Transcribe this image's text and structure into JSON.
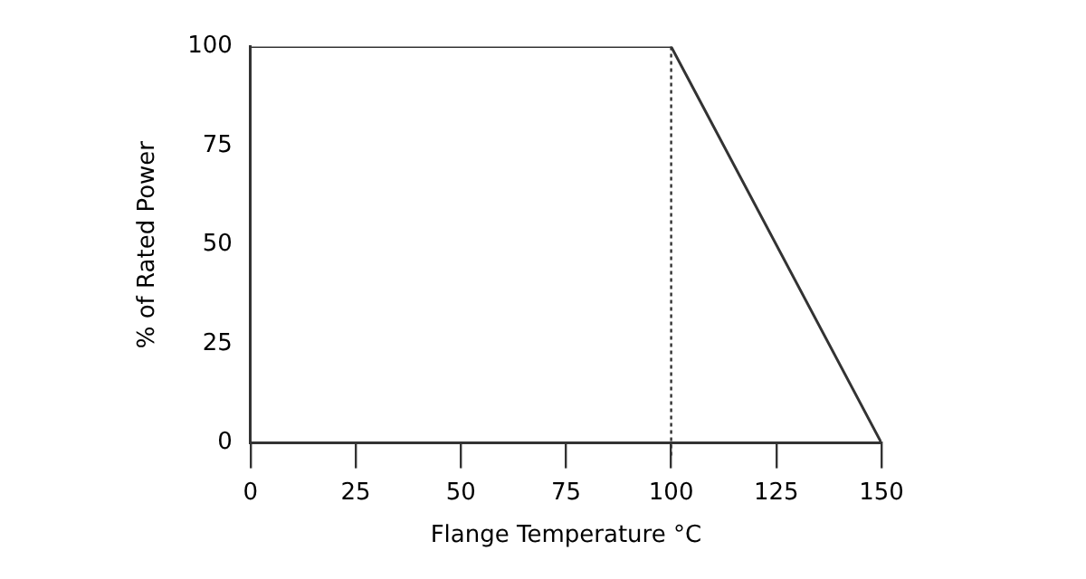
{
  "chart_data": {
    "type": "line",
    "xlabel": "Flange Temperature °C",
    "ylabel": "% of Rated Power",
    "series": [
      {
        "color": "#333333",
        "x": [
          0,
          100,
          150
        ],
        "values": [
          100,
          100,
          0
        ]
      }
    ],
    "xlim": [
      0,
      150
    ],
    "xticks": [
      0,
      25,
      50,
      75,
      100,
      125,
      150
    ],
    "ylim": [
      0,
      100
    ],
    "yticks": [
      0,
      25,
      50,
      75,
      100
    ],
    "ref_lines": [
      {
        "axis": "x",
        "value": 100,
        "line_style": "dotted",
        "color": "#333333"
      }
    ],
    "grid": false,
    "legend": false,
    "marker": "none",
    "line_style": "solid"
  }
}
